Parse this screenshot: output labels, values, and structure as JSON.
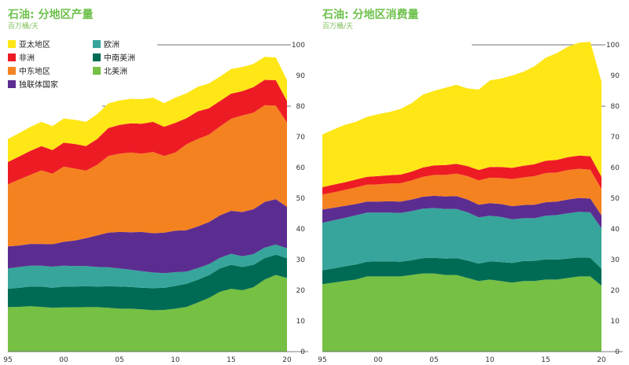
{
  "chart_data": [
    {
      "type": "area",
      "stacked": true,
      "title": "石油: 分地区产量",
      "subtitle": "百万桶/天",
      "x": [
        1995,
        1996,
        1997,
        1998,
        1999,
        2000,
        2001,
        2002,
        2003,
        2004,
        2005,
        2006,
        2007,
        2008,
        2009,
        2010,
        2011,
        2012,
        2013,
        2014,
        2015,
        2016,
        2017,
        2018,
        2019,
        2020
      ],
      "x_tick_labels": [
        "95",
        "00",
        "05",
        "10",
        "15",
        "20"
      ],
      "x_tick_values": [
        1995,
        2000,
        2005,
        2010,
        2015,
        2020
      ],
      "ylim": [
        0,
        100
      ],
      "y_ticks": [
        0,
        10,
        20,
        30,
        40,
        50,
        60,
        70,
        80,
        90,
        100
      ],
      "grid": false,
      "series": [
        {
          "name": "北美洲",
          "color": "#76c043",
          "values": [
            14.5,
            14.6,
            14.8,
            14.6,
            14.3,
            14.4,
            14.4,
            14.5,
            14.5,
            14.3,
            14.0,
            14.0,
            13.8,
            13.5,
            13.6,
            14.0,
            14.6,
            16.0,
            17.5,
            19.5,
            20.5,
            20.0,
            21.0,
            23.5,
            25.0,
            24.0
          ]
        },
        {
          "name": "中南美洲",
          "color": "#006b54",
          "values": [
            6.0,
            6.2,
            6.4,
            6.6,
            6.5,
            6.8,
            6.8,
            6.8,
            6.7,
            7.0,
            7.2,
            7.1,
            7.0,
            7.2,
            7.2,
            7.4,
            7.5,
            7.4,
            7.4,
            7.6,
            7.8,
            7.6,
            7.3,
            7.0,
            6.6,
            6.4
          ]
        },
        {
          "name": "欧洲",
          "color": "#37a59b",
          "values": [
            6.6,
            6.8,
            6.8,
            6.8,
            6.9,
            6.8,
            6.7,
            6.6,
            6.4,
            6.2,
            5.9,
            5.6,
            5.4,
            5.1,
            4.8,
            4.5,
            4.0,
            3.8,
            3.6,
            3.5,
            3.6,
            3.5,
            3.5,
            3.4,
            3.3,
            3.3
          ]
        },
        {
          "name": "独联体国家",
          "color": "#5c2d91",
          "values": [
            7.2,
            7.0,
            7.1,
            7.1,
            7.3,
            7.8,
            8.3,
            9.1,
            10.3,
            11.3,
            11.9,
            12.2,
            12.8,
            12.8,
            13.2,
            13.5,
            13.5,
            13.6,
            13.7,
            13.8,
            14.0,
            14.4,
            14.6,
            14.9,
            14.8,
            13.5
          ]
        },
        {
          "name": "中东地区",
          "color": "#f58220",
          "values": [
            20.2,
            21.5,
            22.5,
            24.0,
            23.0,
            24.5,
            23.5,
            22.0,
            23.0,
            25.0,
            25.5,
            26.0,
            25.5,
            26.5,
            25.0,
            25.5,
            28.0,
            28.5,
            28.5,
            29.0,
            30.0,
            31.5,
            31.5,
            31.5,
            30.5,
            27.5
          ]
        },
        {
          "name": "非洲",
          "color": "#ed1c24",
          "values": [
            7.3,
            7.5,
            7.8,
            7.9,
            7.7,
            7.8,
            8.0,
            8.0,
            8.4,
            9.1,
            9.4,
            9.5,
            9.8,
            9.8,
            9.5,
            9.7,
            8.5,
            9.0,
            8.6,
            8.3,
            8.2,
            7.9,
            8.3,
            8.3,
            8.3,
            7.0
          ]
        },
        {
          "name": "亚太地区",
          "color": "#ffe617",
          "values": [
            7.5,
            7.6,
            7.8,
            7.9,
            7.8,
            7.9,
            7.9,
            7.9,
            8.1,
            8.0,
            8.0,
            8.0,
            8.0,
            7.9,
            7.7,
            8.2,
            8.1,
            8.0,
            8.1,
            8.0,
            8.0,
            7.9,
            7.6,
            7.5,
            7.4,
            6.8
          ]
        }
      ],
      "legend": {
        "placement": "top-left",
        "items": [
          "亚太地区",
          "非洲",
          "中东地区",
          "独联体国家",
          "欧洲",
          "中南美洲",
          "北美洲"
        ]
      }
    },
    {
      "type": "area",
      "stacked": true,
      "title": "石油: 分地区消费量",
      "subtitle": "百万桶/天",
      "x": [
        1995,
        1996,
        1997,
        1998,
        1999,
        2000,
        2001,
        2002,
        2003,
        2004,
        2005,
        2006,
        2007,
        2008,
        2009,
        2010,
        2011,
        2012,
        2013,
        2014,
        2015,
        2016,
        2017,
        2018,
        2019,
        2020
      ],
      "x_tick_labels": [
        "95",
        "00",
        "05",
        "10",
        "15",
        "20"
      ],
      "x_tick_values": [
        1995,
        2000,
        2005,
        2010,
        2015,
        2020
      ],
      "ylim": [
        0,
        100
      ],
      "y_ticks": [
        0,
        10,
        20,
        30,
        40,
        50,
        60,
        70,
        80,
        90,
        100
      ],
      "grid": false,
      "series": [
        {
          "name": "北美洲",
          "color": "#76c043",
          "values": [
            22.0,
            22.5,
            23.0,
            23.5,
            24.5,
            24.5,
            24.5,
            24.5,
            25.0,
            25.5,
            25.5,
            25.0,
            25.0,
            24.0,
            23.0,
            23.5,
            23.0,
            22.5,
            23.0,
            23.0,
            23.5,
            23.5,
            24.0,
            24.5,
            24.5,
            21.5
          ]
        },
        {
          "name": "中南美洲",
          "color": "#006b54",
          "values": [
            4.5,
            4.6,
            4.8,
            4.9,
            4.8,
            4.9,
            4.9,
            4.8,
            4.8,
            5.0,
            5.1,
            5.3,
            5.5,
            5.7,
            5.7,
            5.9,
            6.2,
            6.4,
            6.5,
            6.6,
            6.6,
            6.5,
            6.3,
            6.2,
            6.1,
            5.5
          ]
        },
        {
          "name": "欧洲",
          "color": "#37a59b",
          "values": [
            15.5,
            15.7,
            15.8,
            16.0,
            16.0,
            15.9,
            15.9,
            15.9,
            16.0,
            16.1,
            16.2,
            16.2,
            16.0,
            15.7,
            15.1,
            14.9,
            14.7,
            14.2,
            14.0,
            13.9,
            14.2,
            14.5,
            14.8,
            14.9,
            14.8,
            13.2
          ]
        },
        {
          "name": "独联体国家",
          "color": "#5c2d91",
          "values": [
            4.3,
            4.1,
            3.9,
            3.7,
            3.6,
            3.6,
            3.7,
            3.7,
            3.8,
            3.9,
            4.0,
            4.1,
            4.2,
            4.2,
            4.1,
            4.1,
            4.2,
            4.3,
            4.3,
            4.4,
            4.4,
            4.4,
            4.5,
            4.5,
            4.5,
            4.2
          ]
        },
        {
          "name": "中东地区",
          "color": "#f58220",
          "values": [
            4.9,
            5.0,
            5.2,
            5.4,
            5.5,
            5.6,
            5.8,
            6.0,
            6.2,
            6.5,
            6.8,
            7.0,
            7.3,
            7.6,
            7.9,
            8.3,
            8.5,
            8.8,
            9.0,
            9.3,
            9.5,
            9.5,
            9.6,
            9.5,
            9.4,
            8.6
          ]
        },
        {
          "name": "非洲",
          "color": "#ed1c24",
          "values": [
            2.4,
            2.5,
            2.5,
            2.6,
            2.6,
            2.7,
            2.7,
            2.8,
            2.9,
            3.0,
            3.1,
            3.2,
            3.2,
            3.3,
            3.4,
            3.5,
            3.6,
            3.7,
            3.8,
            3.9,
            4.0,
            4.1,
            4.2,
            4.3,
            4.4,
            4.0
          ]
        },
        {
          "name": "亚太地区",
          "color": "#ffe617",
          "values": [
            17.2,
            18.0,
            18.7,
            18.8,
            19.5,
            20.2,
            20.6,
            21.4,
            22.3,
            23.8,
            24.3,
            25.2,
            25.8,
            25.3,
            26.2,
            28.2,
            28.8,
            30.1,
            30.6,
            31.9,
            33.6,
            34.8,
            36.0,
            36.8,
            37.3,
            31.0
          ]
        }
      ]
    }
  ]
}
